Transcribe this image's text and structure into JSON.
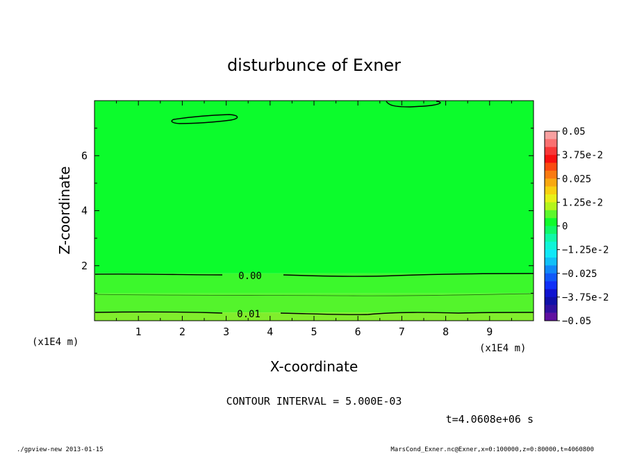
{
  "chart_data": {
    "type": "contour",
    "title": "disturbunce of Exner",
    "xlabel": "X-coordinate",
    "ylabel": "Z-coordinate",
    "x_unit": "(x1E4 m)",
    "y_unit": "(x1E4 m)",
    "xlim": [
      0,
      10
    ],
    "ylim": [
      0,
      8
    ],
    "x_ticks": [
      "1",
      "2",
      "3",
      "4",
      "5",
      "6",
      "7",
      "8",
      "9"
    ],
    "y_ticks": [
      "2",
      "4",
      "6"
    ],
    "contour_interval_text": "CONTOUR INTERVAL = 5.000E-03",
    "time_text": "t=4.0608e+06 s",
    "contour_labels": [
      {
        "text": "0.00",
        "x": 3.5,
        "z": 1.7
      },
      {
        "text": "0.01",
        "x": 3.5,
        "z": 0.3
      }
    ],
    "bands": [
      {
        "z_top": 8.0,
        "z_bottom": 1.72,
        "color": "#0cfc2c"
      },
      {
        "z_top": 1.72,
        "z_bottom": 1.0,
        "color": "#3cf82c"
      },
      {
        "z_top": 1.0,
        "z_bottom": 0.3,
        "color": "#54f42c"
      },
      {
        "z_top": 0.3,
        "z_bottom": 0.0,
        "color": "#80ee2c"
      }
    ],
    "colorbar": {
      "labels": [
        "0.05",
        "3.75e-2",
        "0.025",
        "1.25e-2",
        "0",
        "−1.25e-2",
        "−0.025",
        "−3.75e-2",
        "−0.05"
      ],
      "colors_top_to_bottom": [
        "#f8a0a0",
        "#fa7070",
        "#f83838",
        "#f81010",
        "#fb4a10",
        "#fa7a10",
        "#f9a810",
        "#f8d010",
        "#e8f018",
        "#b4f41c",
        "#5cf82c",
        "#10fc2c",
        "#10f868",
        "#10f8a8",
        "#10f4d8",
        "#10e8f8",
        "#10c0f8",
        "#1088f8",
        "#1058f8",
        "#1030f8",
        "#1014d0",
        "#1010a8",
        "#3010a0",
        "#6010a0"
      ]
    }
  },
  "footer": {
    "left": "./gpview-new   2013-01-15",
    "right": "MarsCond_Exner.nc@Exner,x=0:100000,z=0:80000,t=4060800"
  }
}
